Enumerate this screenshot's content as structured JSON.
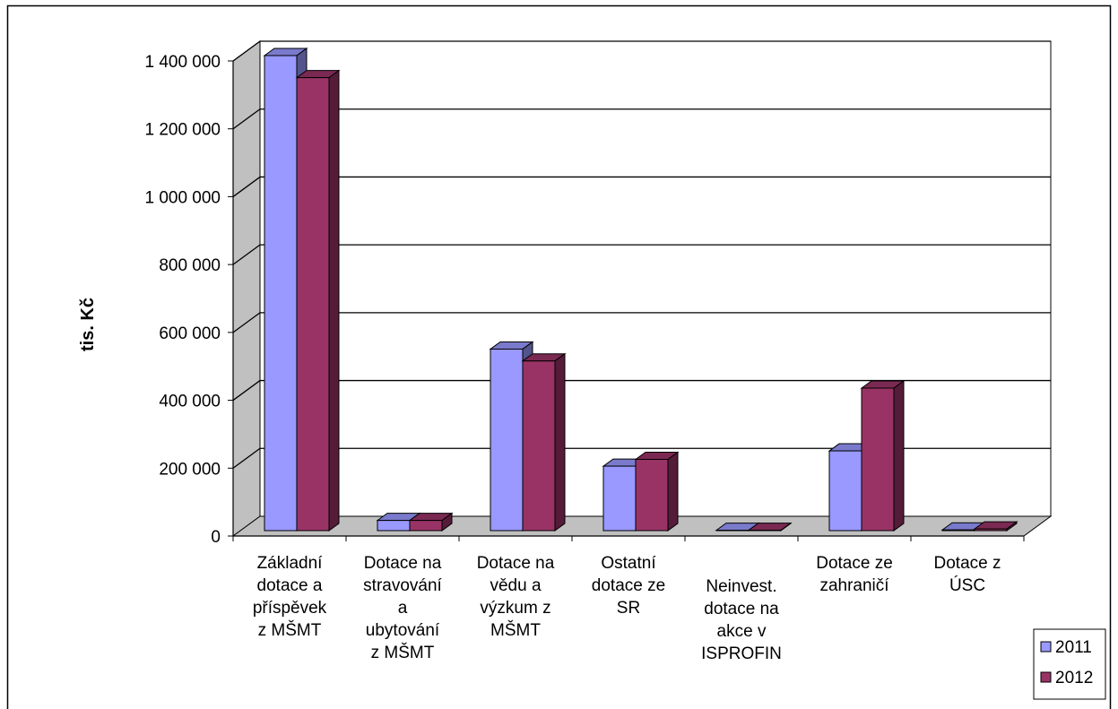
{
  "chart_data": {
    "type": "bar",
    "categories": [
      [
        "Základní",
        "dotace a",
        "příspěvek",
        "z MŠMT"
      ],
      [
        "Dotace na",
        "stravování",
        "a",
        "ubytování",
        "z MŠMT"
      ],
      [
        "Dotace na",
        "vědu a",
        "výzkum z",
        "MŠMT"
      ],
      [
        "Ostatní",
        "dotace ze",
        "SR"
      ],
      [
        "Neinvest.",
        "dotace na",
        "akce v",
        "ISPROFIN"
      ],
      [
        "Dotace ze",
        "zahraničí"
      ],
      [
        "Dotace z",
        "ÚSC"
      ]
    ],
    "series": [
      {
        "name": "2011",
        "color": "#9999ff",
        "values": [
          1400000,
          30000,
          535000,
          190000,
          1000,
          235000,
          2000
        ]
      },
      {
        "name": "2012",
        "color": "#993366",
        "values": [
          1335000,
          30000,
          500000,
          210000,
          1000,
          420000,
          5000
        ]
      }
    ],
    "ylabel": "tis. Kč",
    "ylim": [
      0,
      1400000
    ],
    "yticks": [
      0,
      200000,
      400000,
      600000,
      800000,
      1000000,
      1200000,
      1400000
    ],
    "ytick_labels": [
      "0",
      "200 000",
      "400 000",
      "600 000",
      "800 000",
      "1 000 000",
      "1 200 000",
      "1 400 000"
    ],
    "grid": true,
    "legend_position": "bottom-right",
    "style": "3d-clustered-column"
  }
}
